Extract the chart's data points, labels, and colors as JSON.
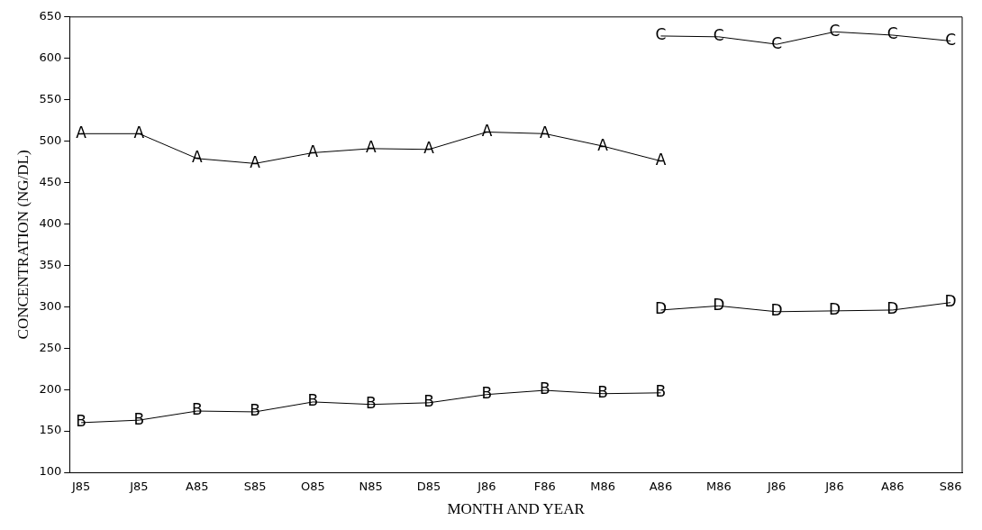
{
  "chart_data": {
    "type": "line",
    "xlabel": "MONTH AND YEAR",
    "ylabel": "CONCENTRATION (NG/DL)",
    "categories": [
      "J85",
      "J85",
      "A85",
      "S85",
      "O85",
      "N85",
      "D85",
      "J86",
      "F86",
      "M86",
      "A86",
      "M86",
      "J86",
      "J86",
      "A86",
      "S86"
    ],
    "series": [
      {
        "name": "A",
        "color": "#000000",
        "values": [
          509,
          509,
          479,
          473,
          486,
          491,
          490,
          511,
          509,
          494,
          476,
          null,
          null,
          null,
          null,
          null
        ]
      },
      {
        "name": "B",
        "color": "#000000",
        "values": [
          160,
          163,
          174,
          173,
          185,
          182,
          184,
          194,
          199,
          195,
          196,
          null,
          null,
          null,
          null,
          null
        ]
      },
      {
        "name": "C",
        "color": "#000000",
        "values": [
          null,
          null,
          null,
          null,
          null,
          null,
          null,
          null,
          null,
          null,
          627,
          626,
          617,
          632,
          628,
          621
        ]
      },
      {
        "name": "D",
        "color": "#000000",
        "values": [
          null,
          null,
          null,
          null,
          null,
          null,
          null,
          null,
          null,
          null,
          296,
          301,
          294,
          295,
          296,
          305
        ]
      }
    ],
    "ylim": [
      100,
      650
    ],
    "yticks": [
      100,
      150,
      200,
      250,
      300,
      350,
      400,
      450,
      500,
      550,
      600,
      650
    ],
    "grid": false,
    "legend": false,
    "marker": "none",
    "line_style": "solid"
  }
}
